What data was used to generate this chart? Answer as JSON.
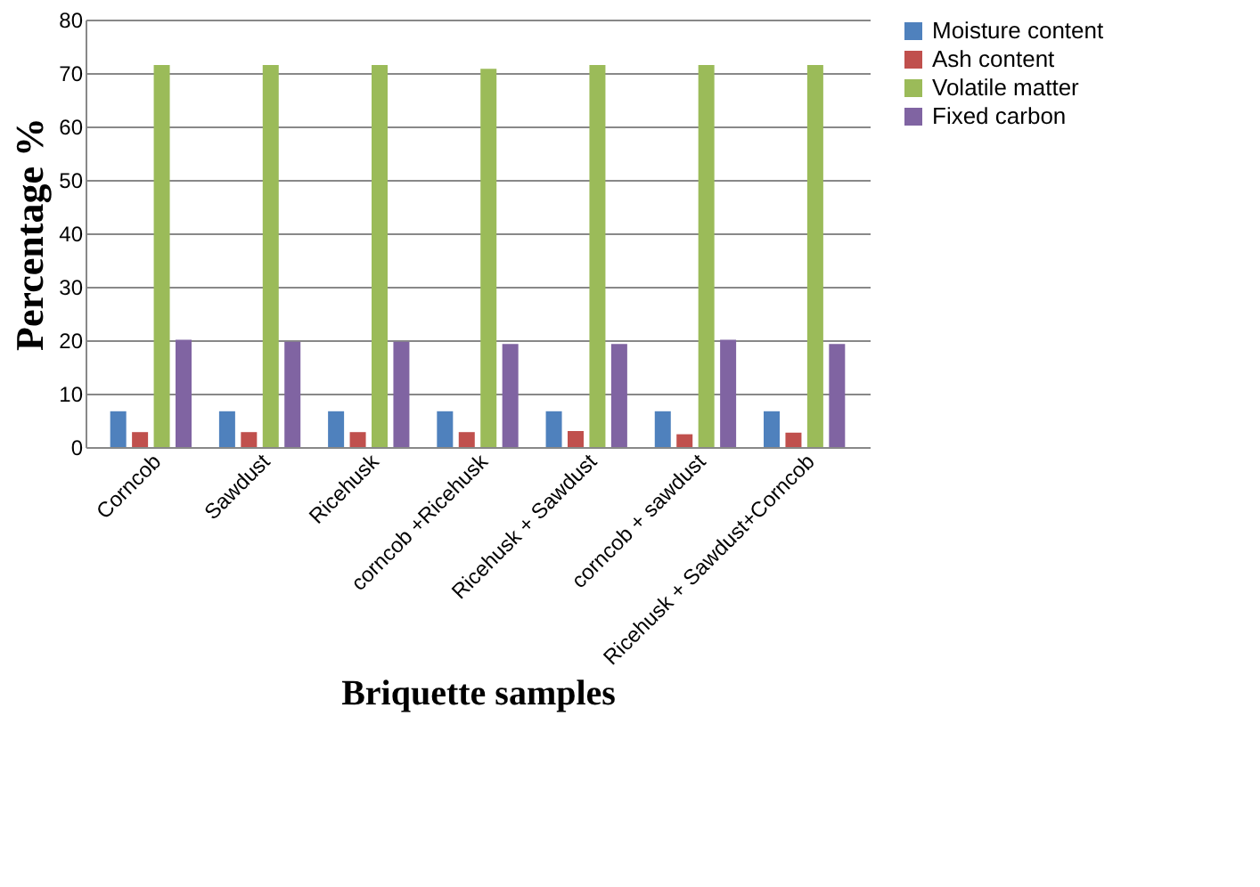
{
  "chart_data": {
    "type": "bar",
    "categories": [
      "Corncob",
      "Sawdust",
      "Ricehusk",
      "corncob +Ricehusk",
      "Ricehusk + Sawdust",
      "corncob + sawdust",
      "Ricehusk + Sawdust+Corncob"
    ],
    "series": [
      {
        "name": "Moisture content",
        "color": "#4f81bd",
        "values": [
          6.7,
          6.7,
          6.7,
          6.7,
          6.7,
          6.7,
          6.7
        ]
      },
      {
        "name": "Ash content",
        "color": "#c0504d",
        "values": [
          2.8,
          2.8,
          2.8,
          2.8,
          3.0,
          2.4,
          2.7
        ]
      },
      {
        "name": "Volatile matter",
        "color": "#9bbb59",
        "values": [
          71.5,
          71.5,
          71.5,
          70.8,
          71.5,
          71.5,
          71.5
        ]
      },
      {
        "name": "Fixed carbon",
        "color": "#8064a2",
        "values": [
          20.1,
          19.7,
          19.7,
          19.3,
          19.3,
          20.1,
          19.3
        ]
      }
    ],
    "xlabel": "Briquette samples",
    "ylabel": "Percentage %",
    "ylim": [
      0,
      80
    ],
    "yticks": [
      0,
      10,
      20,
      30,
      40,
      50,
      60,
      70,
      80
    ],
    "grid": "y",
    "legend": "right"
  }
}
